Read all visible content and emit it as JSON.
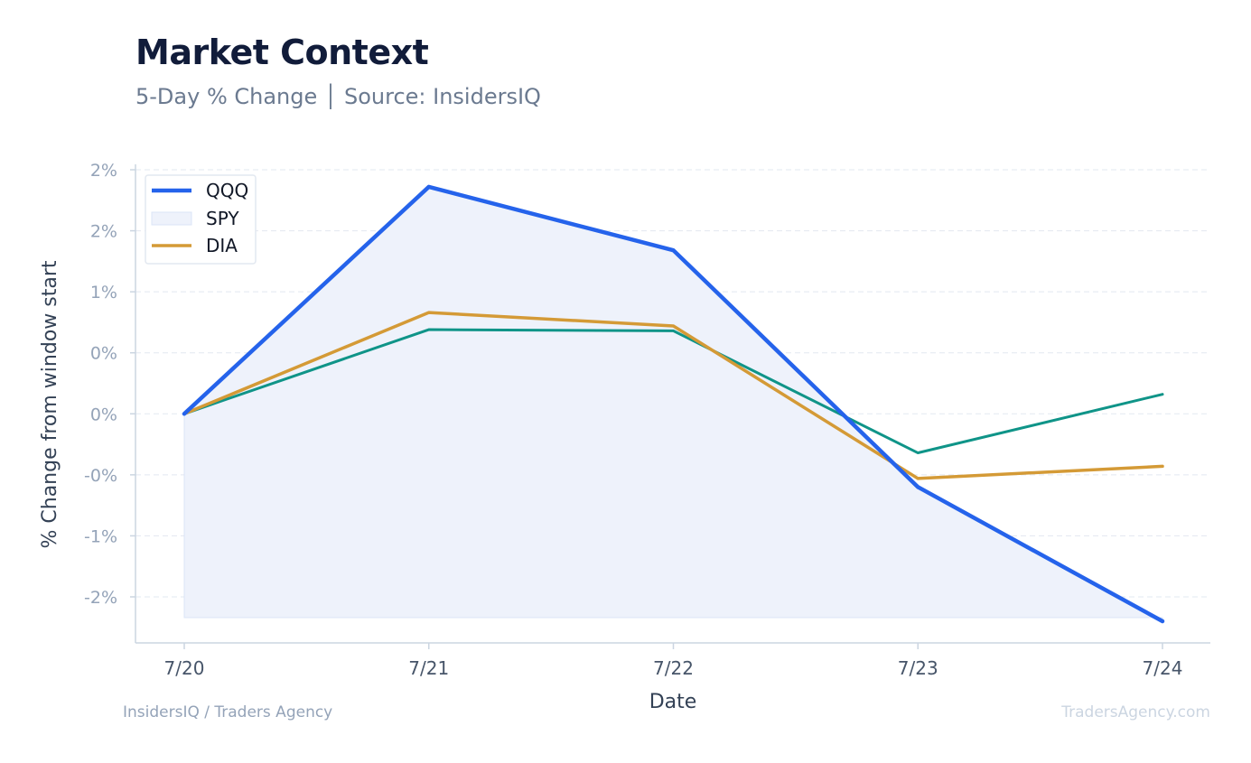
{
  "header": {
    "title": "Market Context",
    "subtitle": "5-Day % Change │ Source: InsidersIQ"
  },
  "footer": {
    "left": "InsidersIQ / Traders Agency",
    "right": "TradersAgency.com"
  },
  "chart_data": {
    "type": "line",
    "x": [
      "7/20",
      "7/21",
      "7/22",
      "7/23",
      "7/24"
    ],
    "xlabel": "Date",
    "ylabel": "% Change from window start",
    "ylim": [
      -2.35,
      2.05
    ],
    "yticks": [
      2.0,
      1.5,
      1.0,
      0.5,
      0.0,
      -0.5,
      -1.0,
      -1.5
    ],
    "ytick_labels": [
      "2%",
      "2%",
      "1%",
      "0%",
      "0%",
      "-0%",
      "-1%",
      "-2%"
    ],
    "grid": true,
    "legend_position": "top-left",
    "series": [
      {
        "name": "QQQ",
        "style": "line",
        "color": "#2563eb",
        "values": [
          0.0,
          1.86,
          1.34,
          -0.6,
          -1.7
        ]
      },
      {
        "name": "SPY",
        "style": "area",
        "color": "#0f9488",
        "fill": "#eef2fb",
        "values": [
          0.0,
          0.69,
          0.68,
          -0.32,
          0.16
        ]
      },
      {
        "name": "DIA",
        "style": "line",
        "color": "#d49a36",
        "values": [
          0.0,
          0.83,
          0.72,
          -0.53,
          -0.43
        ]
      }
    ]
  }
}
